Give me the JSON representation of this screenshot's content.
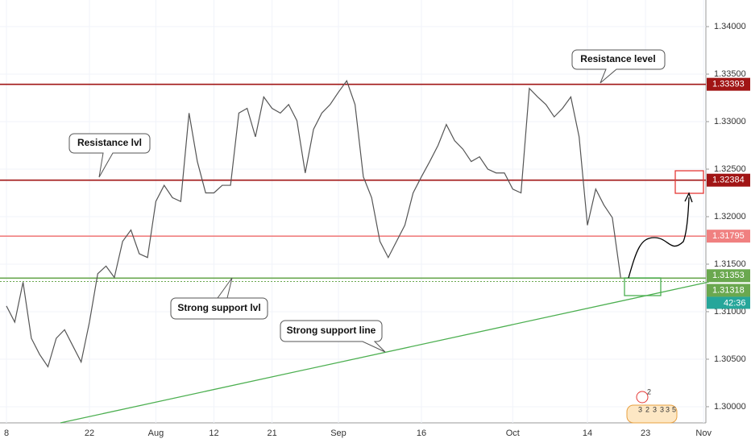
{
  "chart_data": {
    "type": "line",
    "categories": [
      "8",
      null,
      null,
      null,
      null,
      null,
      null,
      null,
      null,
      null,
      "22",
      null,
      null,
      null,
      null,
      null,
      null,
      null,
      "Aug",
      null,
      null,
      null,
      null,
      null,
      null,
      "12",
      null,
      null,
      null,
      null,
      null,
      null,
      "21",
      null,
      null,
      null,
      null,
      null,
      null,
      null,
      "Sep",
      null,
      null,
      null,
      null,
      null,
      null,
      null,
      null,
      null,
      "16",
      null,
      null,
      null,
      null,
      null,
      null,
      null,
      null,
      null,
      null,
      "Oct",
      null,
      null,
      null,
      null,
      null,
      null,
      null,
      null,
      "14",
      null,
      null,
      null,
      null,
      null,
      null,
      "23",
      null,
      null,
      null,
      null,
      null,
      null,
      "Nov"
    ],
    "series": [
      {
        "color": "#555555",
        "values": [
          1.3106,
          1.3089,
          1.3131,
          1.3072,
          1.3055,
          1.3042,
          1.3072,
          1.3081,
          1.3064,
          1.3047,
          1.3089,
          1.314,
          1.3148,
          1.3136,
          1.3174,
          1.3186,
          1.3161,
          1.3157,
          1.3216,
          1.3233,
          1.322,
          1.3216,
          1.3309,
          1.3258,
          1.3225,
          1.3225,
          1.3233,
          1.3233,
          1.3309,
          1.3314,
          1.3284,
          1.3326,
          1.3314,
          1.3309,
          1.3318,
          1.3301,
          1.3246,
          1.3292,
          1.3309,
          1.3318,
          1.3331,
          1.3343,
          1.3318,
          1.3242,
          1.322,
          1.3174,
          1.3157,
          1.3174,
          1.3191,
          1.3225,
          1.3242,
          1.3258,
          1.3275,
          1.3297,
          1.328,
          1.3271,
          1.3258,
          1.3263,
          1.325,
          1.3246,
          1.3246,
          1.3229,
          1.3225,
          1.3335,
          1.3326,
          1.3318,
          1.3305,
          1.3314,
          1.3326,
          1.3284,
          1.3191,
          1.3229,
          1.3212,
          1.3199,
          1.3136,
          null,
          null,
          null,
          null,
          null,
          null,
          null,
          null,
          null,
          null
        ]
      }
    ],
    "ylim": [
      1.2983,
      1.3428
    ],
    "yticks": [
      {
        "value": 1.3,
        "label": "1.30000"
      },
      {
        "value": 1.305,
        "label": "1.30500"
      },
      {
        "value": 1.31,
        "label": "1.31000"
      },
      {
        "value": 1.315,
        "label": "1.31500"
      },
      {
        "value": 1.32,
        "label": "1.32000"
      },
      {
        "value": 1.325,
        "label": "1.32500"
      },
      {
        "value": 1.33,
        "label": "1.33000"
      },
      {
        "value": 1.335,
        "label": "1.33500"
      },
      {
        "value": 1.34,
        "label": "1.34000"
      }
    ],
    "levels": [
      {
        "value": 1.33393,
        "color": "#a11515"
      },
      {
        "value": 1.32384,
        "color": "#a11515"
      },
      {
        "value": 1.31795,
        "color": "#f08080"
      },
      {
        "value": 1.31353,
        "color": "#6aa84f"
      },
      {
        "value": 1.31318,
        "color": "#6aa84f"
      }
    ],
    "countdown": "42:36",
    "annotations": [
      "Resistance level",
      "Resistance lvl",
      "Strong support lvl",
      "Strong support line"
    ],
    "events": [
      "2",
      "3",
      "2",
      "3",
      "3",
      "3",
      "5"
    ]
  }
}
